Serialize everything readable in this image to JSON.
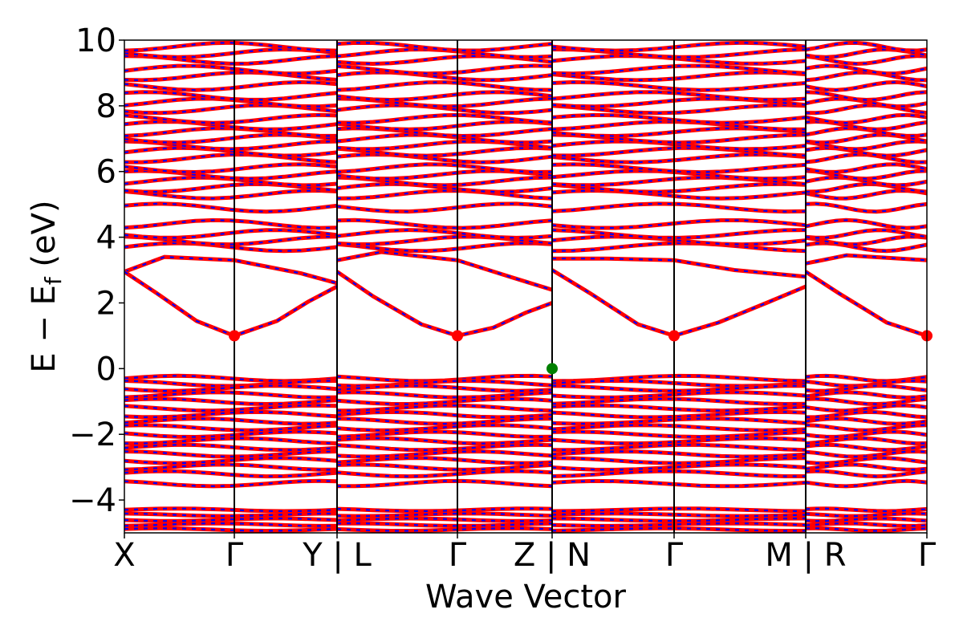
{
  "chart_data": {
    "type": "line",
    "xlabel": "Wave Vector",
    "ylabel_main": "E − E",
    "ylabel_sub": "f",
    "ylabel_unit": " (eV)",
    "ylim": [
      -5,
      10
    ],
    "yticks": [
      -4,
      -2,
      0,
      2,
      4,
      6,
      8,
      10
    ],
    "ytick_labels": [
      "−4",
      "−2",
      "0",
      "2",
      "4",
      "6",
      "8",
      "10"
    ],
    "xlim": [
      0,
      1
    ],
    "xticks": [
      {
        "pos": 0.0,
        "label": "X"
      },
      {
        "pos": 0.137,
        "label": "Γ"
      },
      {
        "pos": 0.265,
        "label": "Y | L"
      },
      {
        "pos": 0.415,
        "label": "Γ"
      },
      {
        "pos": 0.533,
        "label": "Z | N"
      },
      {
        "pos": 0.685,
        "label": "Γ"
      },
      {
        "pos": 0.849,
        "label": "M | R"
      },
      {
        "pos": 1.0,
        "label": "Γ"
      }
    ],
    "path_breaks": [
      0.265,
      0.533,
      0.849
    ],
    "gamma_lines": [
      0.137,
      0.415,
      0.685
    ],
    "band_colors": {
      "up": "#ff0000",
      "down": "#0000ff"
    },
    "conduction_band_minimum": {
      "color": "#ff0000",
      "energy": 1.0,
      "x": [
        0.137,
        0.415,
        0.685,
        1.0
      ]
    },
    "valence_band_maximum": {
      "color": "#008000",
      "energy": 0.0,
      "x": [
        0.533
      ]
    },
    "conduction_bands": {
      "lowest_band": [
        {
          "x": [
            0.0,
            0.04,
            0.09,
            0.137,
            0.19,
            0.23,
            0.265
          ],
          "y": [
            2.95,
            2.3,
            1.45,
            1.0,
            1.45,
            2.05,
            2.5
          ]
        },
        {
          "x": [
            0.265,
            0.31,
            0.37,
            0.415,
            0.46,
            0.5,
            0.533
          ],
          "y": [
            2.95,
            2.2,
            1.35,
            1.0,
            1.25,
            1.7,
            2.0
          ]
        },
        {
          "x": [
            0.533,
            0.58,
            0.64,
            0.685,
            0.74,
            0.8,
            0.849
          ],
          "y": [
            3.0,
            2.3,
            1.35,
            1.0,
            1.4,
            2.0,
            2.5
          ]
        },
        {
          "x": [
            0.849,
            0.89,
            0.95,
            1.0
          ],
          "y": [
            2.95,
            2.3,
            1.4,
            1.0
          ]
        }
      ],
      "second_band": [
        {
          "x": [
            0.0,
            0.05,
            0.137,
            0.22,
            0.265
          ],
          "y": [
            2.95,
            3.4,
            3.3,
            2.9,
            2.6
          ]
        },
        {
          "x": [
            0.265,
            0.32,
            0.415,
            0.48,
            0.533
          ],
          "y": [
            3.3,
            3.55,
            3.3,
            2.8,
            2.4
          ]
        },
        {
          "x": [
            0.533,
            0.6,
            0.685,
            0.76,
            0.849
          ],
          "y": [
            3.35,
            3.35,
            3.3,
            3.0,
            2.8
          ]
        },
        {
          "x": [
            0.849,
            0.9,
            1.0
          ],
          "y": [
            3.2,
            3.45,
            3.3
          ]
        }
      ]
    },
    "flat_conduction_levels": [
      3.7,
      3.9,
      4.1,
      4.4,
      4.9,
      5.3,
      5.5,
      5.7,
      5.9,
      6.1,
      6.4,
      6.6,
      6.8,
      7.0,
      7.2,
      7.4,
      7.6,
      7.9,
      8.1,
      8.3,
      8.6,
      8.9,
      9.1,
      9.4,
      9.6,
      9.8
    ],
    "flat_valence_levels": [
      -0.3,
      -0.45,
      -0.6,
      -0.8,
      -1.0,
      -1.2,
      -1.4,
      -1.6,
      -1.8,
      -2.0,
      -2.2,
      -2.4,
      -2.6,
      -2.8,
      -3.0,
      -3.2,
      -3.5
    ],
    "deep_levels": [
      -4.3,
      -4.45,
      -4.6,
      -4.75,
      -4.9
    ]
  }
}
